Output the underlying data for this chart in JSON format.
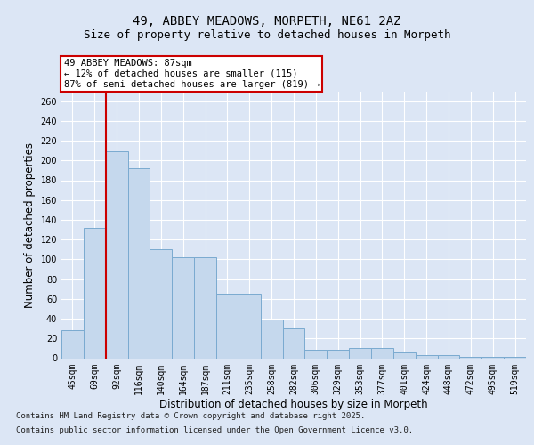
{
  "title_line1": "49, ABBEY MEADOWS, MORPETH, NE61 2AZ",
  "title_line2": "Size of property relative to detached houses in Morpeth",
  "xlabel": "Distribution of detached houses by size in Morpeth",
  "ylabel": "Number of detached properties",
  "categories": [
    "45sqm",
    "69sqm",
    "92sqm",
    "116sqm",
    "140sqm",
    "164sqm",
    "187sqm",
    "211sqm",
    "235sqm",
    "258sqm",
    "282sqm",
    "306sqm",
    "329sqm",
    "353sqm",
    "377sqm",
    "401sqm",
    "424sqm",
    "448sqm",
    "472sqm",
    "495sqm",
    "519sqm"
  ],
  "values": [
    28,
    132,
    209,
    192,
    110,
    102,
    102,
    65,
    65,
    39,
    30,
    9,
    9,
    10,
    10,
    6,
    3,
    3,
    1,
    1,
    1
  ],
  "bar_color": "#c5d8ed",
  "bar_edge_color": "#7aaad0",
  "vline_color": "#cc0000",
  "annotation_text": "49 ABBEY MEADOWS: 87sqm\n← 12% of detached houses are smaller (115)\n87% of semi-detached houses are larger (819) →",
  "annotation_box_color": "white",
  "annotation_box_edge": "#cc0000",
  "ylim": [
    0,
    270
  ],
  "yticks": [
    0,
    20,
    40,
    60,
    80,
    100,
    120,
    140,
    160,
    180,
    200,
    220,
    240,
    260
  ],
  "background_color": "#dce6f5",
  "plot_bg_color": "#dce6f5",
  "grid_color": "white",
  "footer_line1": "Contains HM Land Registry data © Crown copyright and database right 2025.",
  "footer_line2": "Contains public sector information licensed under the Open Government Licence v3.0.",
  "title_fontsize": 10,
  "subtitle_fontsize": 9,
  "axis_label_fontsize": 8.5,
  "tick_fontsize": 7,
  "annotation_fontsize": 7.5,
  "footer_fontsize": 6.5
}
